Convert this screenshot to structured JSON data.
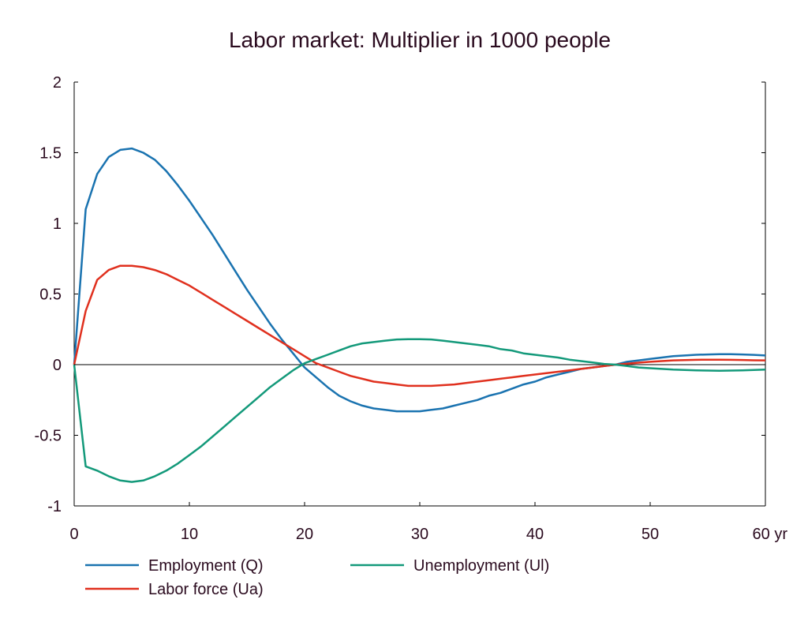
{
  "chart_data": {
    "type": "line",
    "title": "Labor market: Multiplier in 1000 people",
    "xlabel": "",
    "ylabel": "",
    "xlim": [
      0,
      60
    ],
    "ylim": [
      -1,
      2
    ],
    "x_ticks": [
      {
        "value": 0,
        "label": "0"
      },
      {
        "value": 10,
        "label": "10"
      },
      {
        "value": 20,
        "label": "20"
      },
      {
        "value": 30,
        "label": "30"
      },
      {
        "value": 40,
        "label": "40"
      },
      {
        "value": 50,
        "label": "50"
      },
      {
        "value": 60,
        "label": "60 yr"
      }
    ],
    "y_ticks": [
      {
        "value": -1,
        "label": "-1"
      },
      {
        "value": -0.5,
        "label": "-0.5"
      },
      {
        "value": 0,
        "label": "0"
      },
      {
        "value": 0.5,
        "label": "0.5"
      },
      {
        "value": 1,
        "label": "1"
      },
      {
        "value": 1.5,
        "label": "1.5"
      },
      {
        "value": 2,
        "label": "2"
      }
    ],
    "grid": false,
    "zero_line": true,
    "legend_position": "bottom",
    "x": [
      0,
      1,
      2,
      3,
      4,
      5,
      6,
      7,
      8,
      9,
      10,
      11,
      12,
      13,
      14,
      15,
      16,
      17,
      18,
      19,
      20,
      21,
      22,
      23,
      24,
      25,
      26,
      27,
      28,
      29,
      30,
      31,
      32,
      33,
      34,
      35,
      36,
      37,
      38,
      39,
      40,
      41,
      42,
      43,
      44,
      45,
      46,
      47,
      48,
      49,
      50,
      51,
      52,
      53,
      54,
      55,
      56,
      57,
      58,
      59,
      60
    ],
    "series": [
      {
        "name": "Employment (Q)",
        "color": "#1a73b0",
        "values": [
          0,
          1.1,
          1.35,
          1.47,
          1.52,
          1.53,
          1.5,
          1.45,
          1.37,
          1.27,
          1.16,
          1.04,
          0.92,
          0.79,
          0.66,
          0.53,
          0.41,
          0.29,
          0.18,
          0.08,
          -0.02,
          -0.09,
          -0.16,
          -0.22,
          -0.26,
          -0.29,
          -0.31,
          -0.32,
          -0.33,
          -0.33,
          -0.33,
          -0.32,
          -0.31,
          -0.29,
          -0.27,
          -0.25,
          -0.22,
          -0.2,
          -0.17,
          -0.14,
          -0.12,
          -0.09,
          -0.07,
          -0.05,
          -0.03,
          -0.02,
          -0.01,
          0.0,
          0.02,
          0.03,
          0.04,
          0.05,
          0.06,
          0.065,
          0.07,
          0.072,
          0.074,
          0.074,
          0.072,
          0.069,
          0.065
        ]
      },
      {
        "name": "Labor force (Ua)",
        "color": "#e0301e",
        "values": [
          0,
          0.38,
          0.6,
          0.67,
          0.7,
          0.7,
          0.69,
          0.67,
          0.64,
          0.6,
          0.56,
          0.51,
          0.46,
          0.41,
          0.36,
          0.31,
          0.26,
          0.21,
          0.16,
          0.11,
          0.06,
          0.01,
          -0.02,
          -0.05,
          -0.08,
          -0.1,
          -0.12,
          -0.13,
          -0.14,
          -0.15,
          -0.15,
          -0.15,
          -0.145,
          -0.14,
          -0.13,
          -0.12,
          -0.11,
          -0.1,
          -0.09,
          -0.08,
          -0.07,
          -0.06,
          -0.05,
          -0.04,
          -0.03,
          -0.02,
          -0.01,
          0.0,
          0.007,
          0.014,
          0.02,
          0.025,
          0.03,
          0.032,
          0.034,
          0.035,
          0.035,
          0.034,
          0.033,
          0.031,
          0.03
        ]
      },
      {
        "name": "Unemployment (Ul)",
        "color": "#13997a",
        "values": [
          0,
          -0.72,
          -0.75,
          -0.79,
          -0.82,
          -0.83,
          -0.82,
          -0.79,
          -0.75,
          -0.7,
          -0.64,
          -0.58,
          -0.51,
          -0.44,
          -0.37,
          -0.3,
          -0.23,
          -0.16,
          -0.1,
          -0.04,
          0.01,
          0.04,
          0.07,
          0.1,
          0.13,
          0.15,
          0.16,
          0.17,
          0.178,
          0.18,
          0.18,
          0.178,
          0.17,
          0.16,
          0.15,
          0.14,
          0.13,
          0.11,
          0.1,
          0.08,
          0.07,
          0.06,
          0.05,
          0.035,
          0.025,
          0.015,
          0.005,
          0.0,
          -0.01,
          -0.02,
          -0.025,
          -0.03,
          -0.035,
          -0.038,
          -0.04,
          -0.042,
          -0.043,
          -0.042,
          -0.04,
          -0.038,
          -0.035
        ]
      }
    ],
    "legend_rows": [
      [
        "Employment (Q)",
        "Unemployment (Ul)"
      ],
      [
        "Labor force (Ua)"
      ]
    ]
  }
}
